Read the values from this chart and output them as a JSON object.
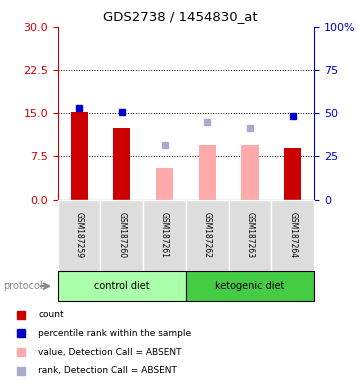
{
  "title": "GDS2738 / 1454830_at",
  "samples": [
    "GSM187259",
    "GSM187260",
    "GSM187261",
    "GSM187262",
    "GSM187263",
    "GSM187264"
  ],
  "count_values": [
    15.2,
    12.5,
    null,
    null,
    null,
    9.0
  ],
  "percentile_values": [
    16.0,
    15.2,
    null,
    null,
    null,
    14.5
  ],
  "absent_value_bars": [
    null,
    null,
    5.5,
    9.5,
    9.5,
    null
  ],
  "absent_rank_squares": [
    null,
    null,
    9.5,
    13.5,
    12.5,
    null
  ],
  "ylim_left": [
    0,
    30
  ],
  "ylim_right": [
    0,
    100
  ],
  "yticks_left": [
    0,
    7.5,
    15,
    22.5,
    30
  ],
  "yticks_right": [
    0,
    25,
    50,
    75,
    100
  ],
  "ytick_right_labels": [
    "0",
    "25",
    "50",
    "75",
    "100%"
  ],
  "left_axis_color": "#cc0000",
  "right_axis_color": "#0000cc",
  "bar_color_present": "#cc0000",
  "bar_color_absent": "#ffaaaa",
  "square_color_present": "#0000cc",
  "square_color_absent": "#aaaacc",
  "group_control_color": "#aaffaa",
  "group_ketogenic_color": "#44cc44",
  "group_control_label": "control diet",
  "group_ketogenic_label": "ketogenic diet",
  "protocol_label": "protocol",
  "legend_labels": [
    "count",
    "percentile rank within the sample",
    "value, Detection Call = ABSENT",
    "rank, Detection Call = ABSENT"
  ],
  "legend_colors": [
    "#cc0000",
    "#0000cc",
    "#ffaaaa",
    "#aaaacc"
  ],
  "hgrid_values": [
    7.5,
    15,
    22.5
  ]
}
